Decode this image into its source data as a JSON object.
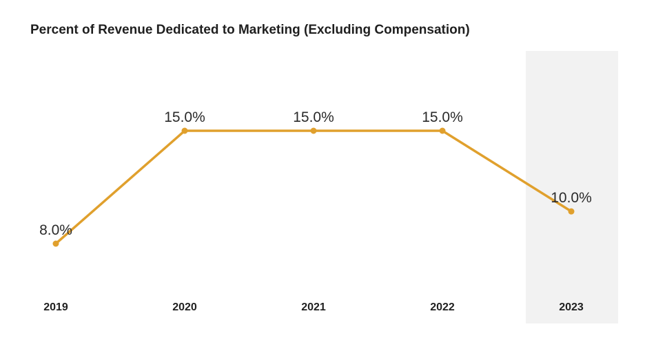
{
  "chart_data": {
    "type": "line",
    "title": "Percent of Revenue Dedicated to Marketing (Excluding Compensation)",
    "xlabel": "",
    "ylabel": "",
    "categories": [
      "2019",
      "2020",
      "2021",
      "2022",
      "2023"
    ],
    "series": [
      {
        "values": [
          8.0,
          15.0,
          15.0,
          15.0,
          10.0
        ],
        "data_labels": [
          "8.0%",
          "15.0%",
          "15.0%",
          "15.0%",
          "10.0%"
        ],
        "color": "#E0A02D"
      }
    ],
    "highlighted_category": "2023",
    "highlight_color": "#F2F2F2",
    "grid": false,
    "legend": "none"
  }
}
